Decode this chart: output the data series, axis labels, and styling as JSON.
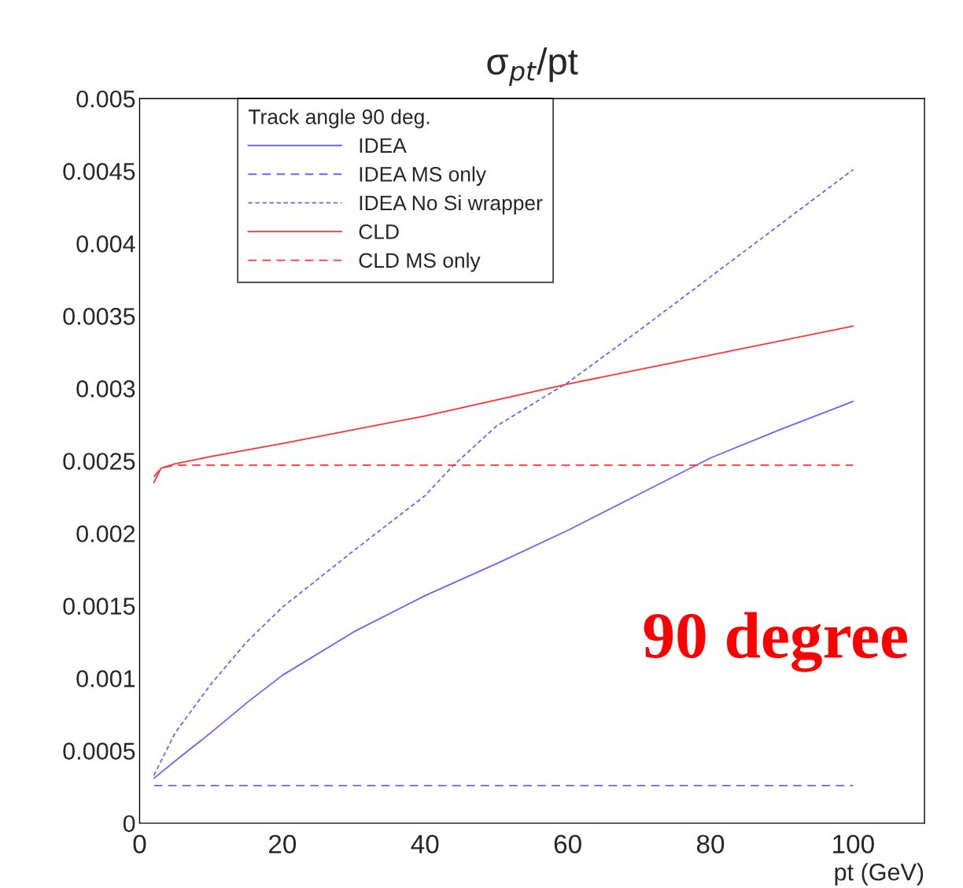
{
  "chart_data": {
    "type": "line",
    "title": "σ$_{pt}$/pt",
    "xlabel": "pt (GeV)",
    "legend_title": "Track angle 90 deg.",
    "xlim": [
      0,
      110
    ],
    "xticks": [
      0,
      20,
      40,
      60,
      80,
      100
    ],
    "ylim": [
      0,
      0.005
    ],
    "yticks": [
      0,
      0.0005,
      0.001,
      0.0015,
      0.002,
      0.0025,
      0.003,
      0.0035,
      0.004,
      0.0045,
      0.005
    ],
    "grid": false,
    "legend": "top",
    "marker": "none",
    "series": [
      {
        "name": "IDEA",
        "color": "#6666ff",
        "line_style": "solid",
        "x": [
          2,
          5,
          10,
          15,
          20,
          30,
          40,
          50,
          60,
          70,
          80,
          90,
          100
        ],
        "values": [
          0.00031,
          0.00043,
          0.000625,
          0.00083,
          0.00102,
          0.00132,
          0.00157,
          0.00179,
          0.00202,
          0.00227,
          0.00252,
          0.00272,
          0.00291
        ]
      },
      {
        "name": "IDEA MS only",
        "color": "#6666ff",
        "line_style": "dashed",
        "x": [
          2,
          100
        ],
        "values": [
          0.00026,
          0.00026
        ]
      },
      {
        "name": "IDEA No Si wrapper",
        "color": "#6666ff",
        "line_style": "dotted",
        "x": [
          2,
          5,
          10,
          15,
          20,
          30,
          40,
          44,
          50,
          60,
          70,
          80,
          90,
          100
        ],
        "values": [
          0.00033,
          0.000625,
          0.00096,
          0.00125,
          0.00149,
          0.00188,
          0.00226,
          0.00247,
          0.00274,
          0.00304,
          0.0034,
          0.00377,
          0.00414,
          0.00451
        ]
      },
      {
        "name": "CLD",
        "color": "#ff3333",
        "line_style": "solid",
        "x": [
          2,
          3,
          5,
          10,
          20,
          40,
          60,
          80,
          100
        ],
        "values": [
          0.00235,
          0.00245,
          0.00248,
          0.00253,
          0.00262,
          0.00281,
          0.00303,
          0.00323,
          0.00343
        ]
      },
      {
        "name": "CLD MS only",
        "color": "#ff3333",
        "line_style": "dashed",
        "x": [
          2,
          3,
          5,
          10,
          100
        ],
        "values": [
          0.00239,
          0.00245,
          0.00247,
          0.00247,
          0.00247
        ]
      }
    ],
    "annotations": [
      "90 degree"
    ]
  }
}
